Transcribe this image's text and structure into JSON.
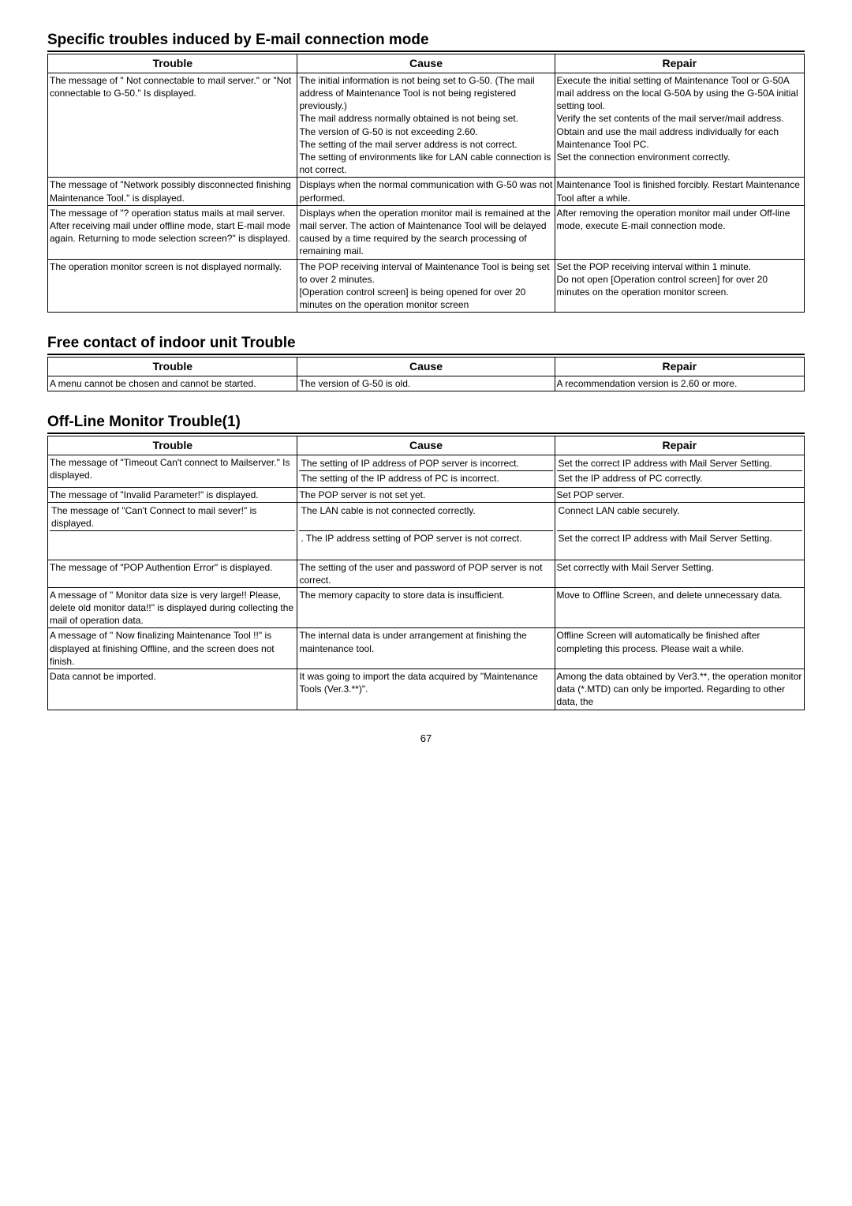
{
  "page_number": "67",
  "sections": [
    {
      "title": "Specific troubles induced by E-mail connection mode",
      "headers": [
        "Trouble",
        "Cause",
        "Repair"
      ],
      "rows": [
        {
          "trouble": "The message of \" Not connectable to mail server.\" or \"Not connectable to G-50.\" Is displayed.",
          "cells": [
            {
              "cause": "The initial information is not being set to G-50.\n(The mail address of Maintenance Tool is not being registered previously.)",
              "repair": "Execute the initial setting of Maintenance Tool or G-50A mail address on the local G-50A by using the G-50A initial setting tool."
            },
            {
              "cause": "The mail address normally obtained is not being set.",
              "repair": "Verify the set contents of the mail server/mail address."
            },
            {
              "cause": "The version of G-50 is not exceeding 2.60.",
              "repair": "Obtain and use the mail address individually for each Maintenance Tool PC."
            },
            {
              "cause": "The setting of the mail server address is not correct.",
              "repair": "Set the connection environment correctly."
            },
            {
              "cause": "The setting of environments like for LAN cable connection is not correct.",
              "repair": ""
            }
          ]
        },
        {
          "trouble": "The message of \"Network possibly disconnected finishing Maintenance Tool.\" is displayed.",
          "cause": "Displays when the normal communication with G-50 was not performed.",
          "repair": "Maintenance Tool is finished forcibly. Restart Maintenance Tool after a while."
        },
        {
          "trouble": "The message of \"? operation status mails at mail server. After receiving mail under offline mode, start E-mail mode again. Returning to mode selection screen?\" is displayed.",
          "cause": "Displays when the operation monitor mail is remained at the mail server. The action of Maintenance Tool will be delayed caused by a time required by the search processing of remaining mail.",
          "repair": "After removing the operation monitor mail under Off-line mode, execute E-mail connection mode."
        },
        {
          "trouble": "The operation monitor screen is not displayed normally.",
          "cells": [
            {
              "cause": "The POP receiving interval of Maintenance Tool is being set to over 2 minutes.",
              "repair": "Set the POP receiving interval within 1 minute."
            },
            {
              "cause": "[Operation control screen] is being opened for over 20 minutes on the operation monitor screen",
              "repair": "Do not open [Operation control screen] for over 20 minutes on the operation monitor screen."
            }
          ]
        }
      ]
    },
    {
      "title": "Free contact of indoor unit Trouble",
      "headers": [
        "Trouble",
        "Cause",
        "Repair"
      ],
      "rows": [
        {
          "trouble": "A menu cannot be chosen and cannot be started.",
          "cause": "The version of G-50 is old.",
          "repair": "A recommendation version is 2.60 or more."
        }
      ]
    },
    {
      "title": "Off-Line Monitor Trouble(1)",
      "headers": [
        "Trouble",
        "Cause",
        "Repair"
      ],
      "rows": [
        {
          "trouble": "The message of \"Timeout Can't connect to Mailserver.\" Is displayed.",
          "cells": [
            {
              "cause": "The setting of IP address of POP server is incorrect.",
              "repair": "Set the correct IP address with Mail Server Setting."
            },
            {
              "cause": "The setting of the IP address of PC is incorrect.",
              "repair": "Set the IP address of PC correctly."
            }
          ]
        },
        {
          "trouble": "The message of \"Invalid Parameter!\" is displayed.",
          "cause": "The POP server is not set yet.",
          "repair": "Set POP server."
        },
        {
          "trouble": "The message of \"Can't Connect to mail sever!\" is displayed.",
          "cells": [
            {
              "cause": "The LAN cable is not connected correctly.",
              "repair": "Connect LAN cable securely."
            },
            {
              "cause": ". The IP address setting of POP server is not correct.",
              "repair": "Set the correct IP address with Mail Server Setting."
            }
          ]
        },
        {
          "trouble": "The message of \"POP Authention Error\" is displayed.",
          "cause": "The setting of the user and password of POP server is not correct.",
          "repair": "Set correctly with Mail Server Setting."
        },
        {
          "trouble": "A message of \" Monitor data size is very large!! Please, delete old monitor data!!\" is displayed during collecting the mail of operation data.",
          "cause": "The memory capacity to store data is insufficient.",
          "repair": "Move to Offline Screen, and delete unnecessary data."
        },
        {
          "trouble": "A message of \" Now finalizing Maintenance Tool !!\" is displayed at finishing Offline, and the screen does not finish.",
          "cause": "The internal data is under arrangement at finishing the maintenance tool.",
          "repair": "Offline Screen will automatically be finished after completing this process. Please wait a while."
        },
        {
          "trouble": "Data cannot be imported.",
          "cause": "It was going to import the data acquired by \"Maintenance Tools (Ver.3.**)\".",
          "repair": "Among the data obtained by Ver3.**, the operation monitor data (*.MTD) can only be imported. Regarding to other data, the"
        }
      ]
    }
  ]
}
